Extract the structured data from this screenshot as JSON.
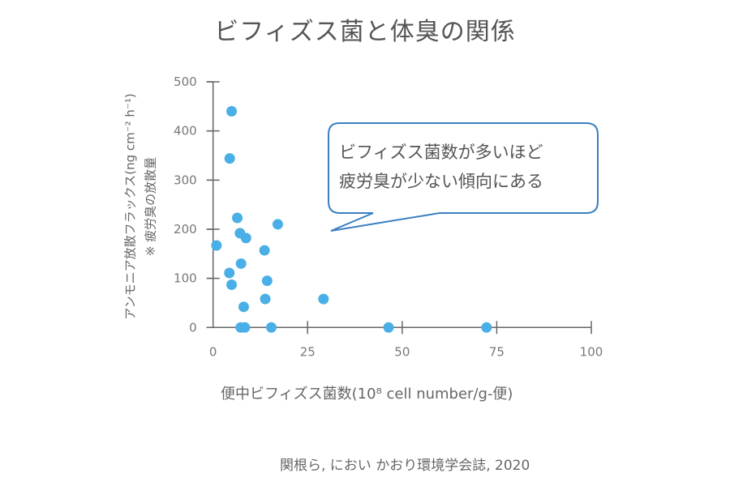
{
  "title": "ビフィズス菌と体臭の関係",
  "ylabel": "アンモニア放散フラックス(ng cm⁻² h⁻¹)",
  "ylabel_note": "※ 疲労臭の放散量",
  "xlabel": "便中ビフィズス菌数(10⁸ cell number/g-便)",
  "callout": {
    "line1": "ビフィズス菌数が多いほど",
    "line2": "疲労臭が少ない傾向にある"
  },
  "source": "関根ら, におい かおり環境学会誌, 2020",
  "colors": {
    "point": "#4aafe6",
    "axis": "#666666",
    "callout_border": "#3a7fc1"
  },
  "chart_data": {
    "type": "scatter",
    "title": "ビフィズス菌と体臭の関係",
    "xlabel": "便中ビフィズス菌数(10⁸ cell number/g-便)",
    "ylabel": "アンモニア放散フラックス(ng cm⁻² h⁻¹) ※ 疲労臭の放散量",
    "xlim": [
      0,
      100
    ],
    "ylim": [
      0,
      500
    ],
    "xticks": [
      0,
      25,
      50,
      75,
      100
    ],
    "yticks": [
      0,
      100,
      200,
      300,
      400,
      500
    ],
    "grid": false,
    "points": [
      {
        "x": 4.9,
        "y": 440
      },
      {
        "x": 4.4,
        "y": 344
      },
      {
        "x": 6.4,
        "y": 223
      },
      {
        "x": 17.1,
        "y": 210
      },
      {
        "x": 7.1,
        "y": 192
      },
      {
        "x": 8.7,
        "y": 182
      },
      {
        "x": 0.9,
        "y": 167
      },
      {
        "x": 13.6,
        "y": 157
      },
      {
        "x": 7.4,
        "y": 130
      },
      {
        "x": 4.3,
        "y": 111
      },
      {
        "x": 14.3,
        "y": 95
      },
      {
        "x": 4.9,
        "y": 87
      },
      {
        "x": 13.8,
        "y": 58
      },
      {
        "x": 29.2,
        "y": 58
      },
      {
        "x": 8.1,
        "y": 42
      },
      {
        "x": 7.3,
        "y": 0
      },
      {
        "x": 8.4,
        "y": 0
      },
      {
        "x": 15.4,
        "y": 0
      },
      {
        "x": 46.4,
        "y": 0
      },
      {
        "x": 72.3,
        "y": 0
      }
    ],
    "annotations": [
      "ビフィズス菌数が多いほど 疲労臭が少ない傾向にある"
    ]
  }
}
